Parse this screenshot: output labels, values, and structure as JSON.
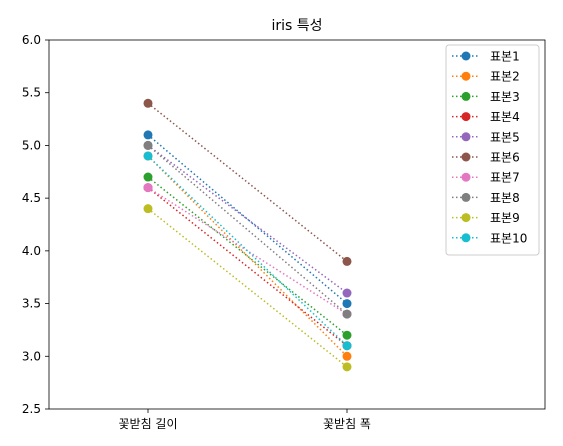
{
  "chart_data": {
    "type": "line",
    "title": "iris 특성",
    "xlabel": "",
    "ylabel": "",
    "categories": [
      "꽃받침 길이",
      "꽃받침 폭"
    ],
    "ylim": [
      2.5,
      6.0
    ],
    "yticks": [
      "2.5",
      "3.0",
      "3.5",
      "4.0",
      "4.5",
      "5.0",
      "5.5",
      "6.0"
    ],
    "grid": false,
    "legend_position": "top-right",
    "line_style": "dotted",
    "marker": "circle",
    "series": [
      {
        "name": "표본1",
        "color": "#1f77b4",
        "values": [
          5.1,
          3.5
        ]
      },
      {
        "name": "표본2",
        "color": "#ff7f0e",
        "values": [
          4.9,
          3.0
        ]
      },
      {
        "name": "표본3",
        "color": "#2ca02c",
        "values": [
          4.7,
          3.2
        ]
      },
      {
        "name": "표본4",
        "color": "#d62728",
        "values": [
          4.6,
          3.1
        ]
      },
      {
        "name": "표본5",
        "color": "#9467bd",
        "values": [
          5.0,
          3.6
        ]
      },
      {
        "name": "표본6",
        "color": "#8c564b",
        "values": [
          5.4,
          3.9
        ]
      },
      {
        "name": "표본7",
        "color": "#e377c2",
        "values": [
          4.6,
          3.4
        ]
      },
      {
        "name": "표본8",
        "color": "#7f7f7f",
        "values": [
          5.0,
          3.4
        ]
      },
      {
        "name": "표본9",
        "color": "#bcbd22",
        "values": [
          4.4,
          2.9
        ]
      },
      {
        "name": "표본10",
        "color": "#17becf",
        "values": [
          4.9,
          3.1
        ]
      }
    ]
  }
}
